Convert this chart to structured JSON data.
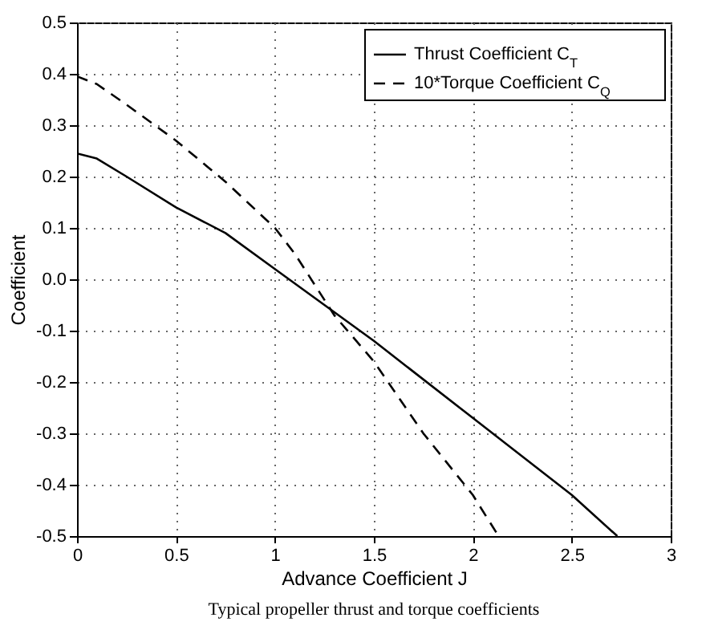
{
  "chart_data": {
    "type": "line",
    "xlabel": "Advance Coefficient J",
    "ylabel": "Coefficient",
    "annotations": [
      "Typical propeller thrust and torque coefficients"
    ],
    "xlim": [
      0,
      3
    ],
    "xticks": [
      0,
      0.5,
      1,
      1.5,
      2,
      2.5,
      3
    ],
    "ylim": [
      -0.5,
      0.5
    ],
    "yticks": [
      {
        "value": -0.5,
        "label": "-0.5"
      },
      {
        "value": -0.4,
        "label": "-0.4"
      },
      {
        "value": -0.3,
        "label": "-0.3"
      },
      {
        "value": -0.2,
        "label": "-0.2"
      },
      {
        "value": -0.1,
        "label": "-0.1"
      },
      {
        "value": 0,
        "label": "0.0"
      },
      {
        "value": 0.1,
        "label": "0.1"
      },
      {
        "value": 0.2,
        "label": "0.2"
      },
      {
        "value": 0.3,
        "label": "0.3"
      },
      {
        "value": 0.4,
        "label": "0.4"
      },
      {
        "value": 0.5,
        "label": "0.5"
      }
    ],
    "grid": true,
    "legend": "top right",
    "marker": "none",
    "series": [
      {
        "name": "Thrust Coefficient C$_{T}$",
        "color": "#000000",
        "line_style": "solid",
        "x": [
          0,
          0.1,
          0.25,
          0.5,
          0.75,
          1,
          1.25,
          1.5,
          2,
          2.5,
          2.73
        ],
        "values": [
          0.245,
          0.235,
          0.2,
          0.14,
          0.09,
          0.02,
          -0.05,
          -0.12,
          -0.27,
          -0.42,
          -0.5
        ]
      },
      {
        "name": "10*Torque Coefficient C$_{Q}$",
        "color": "#000000",
        "line_style": "dashed",
        "x": [
          0,
          0.1,
          0.25,
          0.5,
          0.75,
          1,
          1.1,
          1.2,
          1.3,
          1.5,
          1.75,
          2,
          2.13
        ],
        "values": [
          0.395,
          0.38,
          0.34,
          0.27,
          0.19,
          0.1,
          0.05,
          -0.01,
          -0.07,
          -0.16,
          -0.3,
          -0.42,
          -0.5
        ]
      }
    ]
  }
}
